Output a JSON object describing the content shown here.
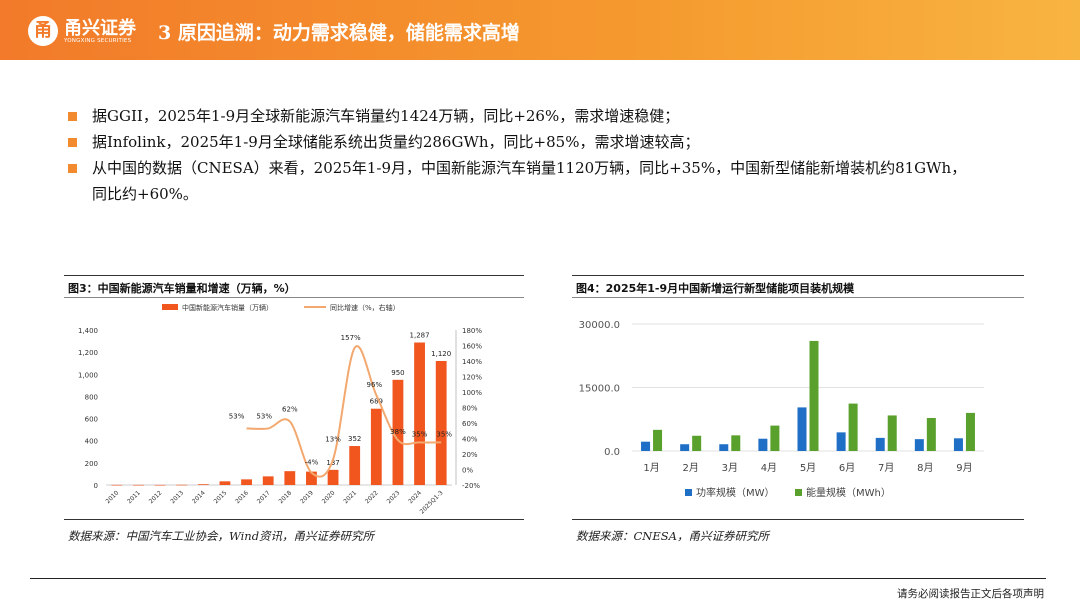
{
  "header": {
    "logo_mark": "甬",
    "logo_cn": "甬兴证券",
    "logo_en": "YONGXING SECURITIES",
    "title": "3 原因追溯：动力需求稳健，储能需求高增",
    "colors": {
      "start": "#f27a2a",
      "end": "#f8b441"
    }
  },
  "bullets": [
    "据GGII，2025年1-9月全球新能源汽车销量约1424万辆，同比+26%，需求增速稳健；",
    "据Infolink，2025年1-9月全球储能系统出货量约286GWh，同比+85%，需求增速较高；",
    "从中国的数据（CNESA）来看，2025年1-9月，中国新能源汽车销量1120万辆，同比+35%，中国新型储能新增装机约81GWh，同比约+60%。"
  ],
  "fig3": {
    "title": "图3：中国新能源汽车销量和增速（万辆，%）",
    "source": "数据来源：中国汽车工业协会，Wind资讯，甬兴证券研究所"
  },
  "fig4": {
    "title": "图4：2025年1-9月中国新增运行新型储能项目装机规模",
    "source": "数据来源：CNESA，甬兴证券研究所"
  },
  "footer": {
    "disclaimer": "请务必阅读报告正文后各项声明"
  },
  "chart_data": [
    {
      "type": "bar",
      "categories": [
        "2010",
        "2011",
        "2012",
        "2013",
        "2014",
        "2015",
        "2016",
        "2017",
        "2018",
        "2019",
        "2020",
        "2021",
        "2022",
        "2023",
        "2024",
        "2025Q1-3"
      ],
      "series": [
        {
          "name": "中国新能源汽车销量（万辆）",
          "type": "bar",
          "color": "#f0561e",
          "values": [
            1,
            1,
            1,
            2,
            7,
            33,
            51,
            78,
            125,
            121,
            137,
            352,
            689,
            950,
            1287,
            1120
          ],
          "labels": {
            "10": "137",
            "11": "352",
            "12": "689",
            "13": "950",
            "14": "1,287",
            "15": "1,120"
          }
        },
        {
          "name": "同比增速（%，右轴）",
          "type": "line",
          "color": "#f3a86f",
          "values": [
            null,
            null,
            null,
            null,
            null,
            null,
            53,
            53,
            62,
            -4,
            13,
            157,
            96,
            38,
            35,
            35
          ],
          "labels": {
            "6": "53%",
            "7": "53%",
            "8": "62%",
            "9": "-4%",
            "10": "13%",
            "11": "157%",
            "12": "96%",
            "13": "38%",
            "14": "35%",
            "15": "35%"
          }
        }
      ],
      "ylim": [
        0,
        1400
      ],
      "yticks": [
        "0",
        "200",
        "400",
        "600",
        "800",
        "1,000",
        "1,200",
        "1,400"
      ],
      "y2lim": [
        -20,
        180
      ],
      "y2ticks": [
        "-20%",
        "0%",
        "20%",
        "40%",
        "60%",
        "80%",
        "100%",
        "120%",
        "140%",
        "160%",
        "180%"
      ],
      "legend": "top"
    },
    {
      "type": "bar",
      "categories": [
        "1月",
        "2月",
        "3月",
        "4月",
        "5月",
        "6月",
        "7月",
        "8月",
        "9月"
      ],
      "series": [
        {
          "name": "功率规模（MW）",
          "color": "#1f6fc6",
          "values": [
            2200,
            1600,
            1600,
            2900,
            10300,
            4400,
            3100,
            2800,
            3000
          ]
        },
        {
          "name": "能量规模（MWh）",
          "color": "#5aa02c",
          "values": [
            5000,
            3600,
            3700,
            6000,
            26000,
            11200,
            8400,
            7800,
            9000
          ]
        }
      ],
      "ylim": [
        0,
        30000
      ],
      "yticks": [
        "0.0",
        "15000.0",
        "30000.0"
      ],
      "grid": true,
      "legend": "bottom"
    }
  ]
}
